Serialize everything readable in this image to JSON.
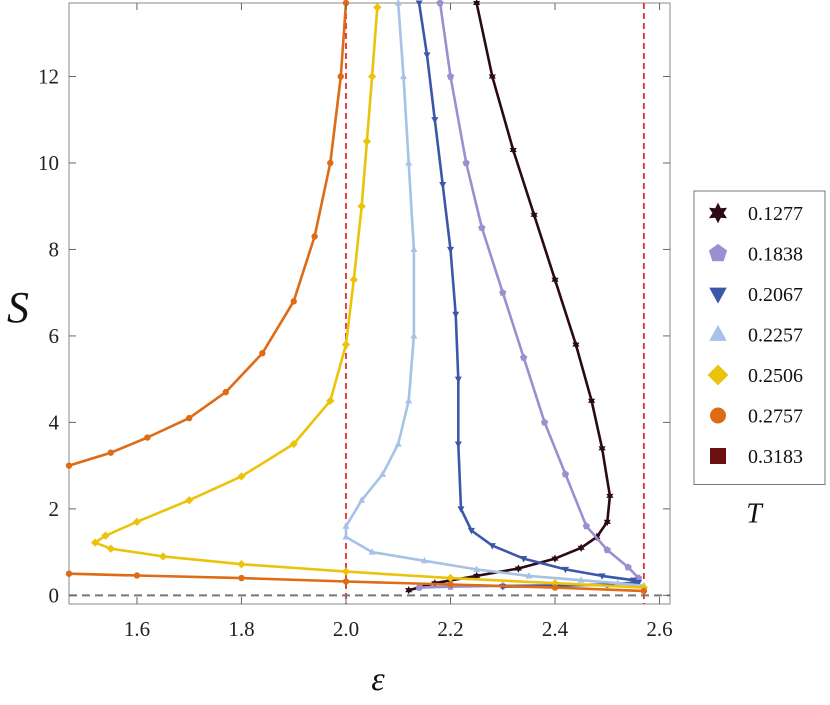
{
  "chart_data": {
    "type": "line",
    "xlabel": "ε",
    "ylabel": "S",
    "xlim": [
      1.47,
      2.62
    ],
    "ylim": [
      -0.2,
      13.7
    ],
    "xticks": [
      1.6,
      1.8,
      2.0,
      2.2,
      2.4,
      2.6
    ],
    "yticks": [
      0,
      2,
      4,
      6,
      8,
      10,
      12
    ],
    "xtick_labels": [
      "1.6",
      "1.8",
      "2.0",
      "2.2",
      "2.4",
      "2.6"
    ],
    "ytick_labels": [
      "0",
      "2",
      "4",
      "6",
      "8",
      "10",
      "12"
    ],
    "grid": false,
    "reference_lines": [
      {
        "orientation": "vertical",
        "x": 2.0,
        "style": "dashed",
        "color": "#e03030"
      },
      {
        "orientation": "vertical",
        "x": 2.57,
        "style": "dashed",
        "color": "#e03030"
      },
      {
        "orientation": "horizontal",
        "y": 0,
        "style": "dashed",
        "color": "#777777"
      }
    ],
    "legend": {
      "title": "T",
      "placement": "right"
    },
    "series": [
      {
        "name": "0.1277",
        "color": "#2a0a14",
        "marker": "star",
        "x": [
          2.25,
          2.28,
          2.32,
          2.36,
          2.4,
          2.44,
          2.47,
          2.49,
          2.505,
          2.5,
          2.48,
          2.45,
          2.4,
          2.33,
          2.25,
          2.17,
          2.12
        ],
        "y": [
          13.7,
          12.0,
          10.3,
          8.8,
          7.3,
          5.8,
          4.5,
          3.4,
          2.3,
          1.7,
          1.35,
          1.1,
          0.85,
          0.62,
          0.45,
          0.28,
          0.12
        ]
      },
      {
        "name": "0.1838",
        "color": "#9b8fd0",
        "marker": "pentagon",
        "x": [
          2.18,
          2.2,
          2.23,
          2.26,
          2.3,
          2.34,
          2.38,
          2.42,
          2.46,
          2.5,
          2.54,
          2.56,
          2.55,
          2.5,
          2.4,
          2.3,
          2.2,
          2.14
        ],
        "y": [
          13.7,
          12.0,
          10.0,
          8.5,
          7.0,
          5.5,
          4.0,
          2.8,
          1.6,
          1.05,
          0.65,
          0.4,
          0.28,
          0.25,
          0.24,
          0.22,
          0.2,
          0.18
        ]
      },
      {
        "name": "0.2067",
        "color": "#3b57a8",
        "marker": "triangle-down",
        "x": [
          2.14,
          2.155,
          2.17,
          2.185,
          2.2,
          2.21,
          2.215,
          2.215,
          2.22,
          2.24,
          2.28,
          2.34,
          2.42,
          2.49,
          2.55,
          2.56,
          2.5,
          2.4,
          2.3
        ],
        "y": [
          13.7,
          12.5,
          11.0,
          9.5,
          8.0,
          6.5,
          5.0,
          3.5,
          2.0,
          1.5,
          1.15,
          0.85,
          0.6,
          0.45,
          0.35,
          0.3,
          0.25,
          0.22,
          0.2
        ]
      },
      {
        "name": "0.2257",
        "color": "#a6c2e6",
        "marker": "triangle-up",
        "x": [
          2.1,
          2.11,
          2.12,
          2.13,
          2.13,
          2.12,
          2.1,
          2.07,
          2.03,
          2.0,
          2.0,
          2.05,
          2.15,
          2.25,
          2.35,
          2.45,
          2.52,
          2.57
        ],
        "y": [
          13.7,
          12.0,
          10.0,
          8.0,
          6.0,
          4.5,
          3.5,
          2.8,
          2.2,
          1.6,
          1.35,
          1.0,
          0.8,
          0.6,
          0.45,
          0.35,
          0.28,
          0.22
        ]
      },
      {
        "name": "0.2506",
        "color": "#ecc30b",
        "marker": "diamond",
        "x": [
          2.06,
          2.05,
          2.04,
          2.03,
          2.015,
          2.0,
          1.97,
          1.9,
          1.8,
          1.7,
          1.6,
          1.54,
          1.52,
          1.55,
          1.65,
          1.8,
          2.0,
          2.2,
          2.4,
          2.57
        ],
        "y": [
          13.6,
          12.0,
          10.5,
          9.0,
          7.3,
          5.8,
          4.5,
          3.5,
          2.75,
          2.2,
          1.7,
          1.38,
          1.22,
          1.08,
          0.9,
          0.72,
          0.55,
          0.4,
          0.28,
          0.18
        ]
      },
      {
        "name": "0.2757",
        "color": "#de6b16",
        "marker": "circle",
        "x": [
          2.0,
          1.99,
          1.97,
          1.94,
          1.9,
          1.84,
          1.77,
          1.7,
          1.62,
          1.55,
          1.47
        ],
        "y": [
          13.7,
          12.0,
          10.0,
          8.3,
          6.8,
          5.6,
          4.7,
          4.1,
          3.65,
          3.3,
          3.0
        ],
        "x_lower": [
          1.47,
          1.6,
          1.8,
          2.0,
          2.2,
          2.4,
          2.57
        ],
        "y_lower": [
          0.5,
          0.46,
          0.4,
          0.32,
          0.25,
          0.18,
          0.1
        ]
      },
      {
        "name": "0.3183",
        "color": "#6b1010",
        "marker": "square",
        "x": [],
        "y": []
      }
    ]
  }
}
